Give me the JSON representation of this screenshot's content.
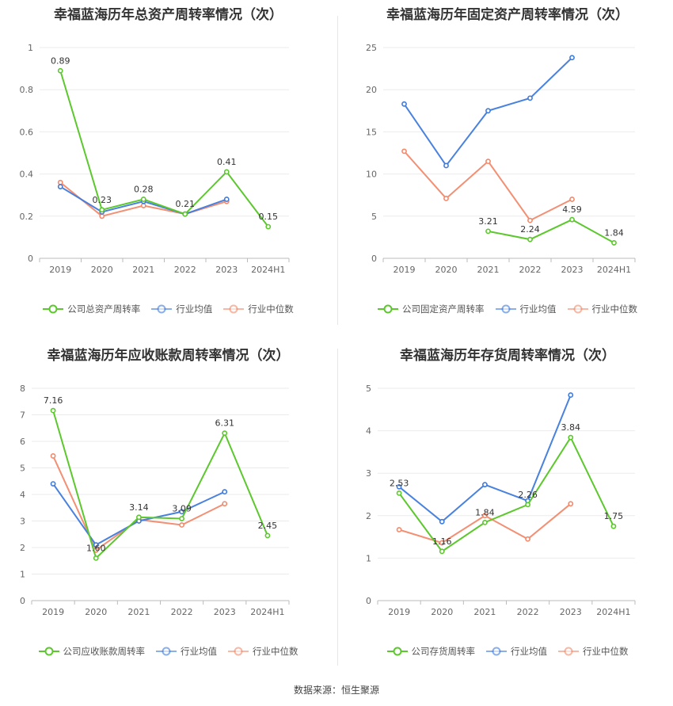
{
  "colors": {
    "company": "#5cc82d",
    "avg": "#3f7bdc",
    "median": "#f2896b"
  },
  "source_text": "数据来源：恒生聚源",
  "chart_data": [
    {
      "type": "line",
      "title": "幸福蓝海历年总资产周转率情况（次）",
      "categories": [
        "2019",
        "2020",
        "2021",
        "2022",
        "2023",
        "2024H1"
      ],
      "ylim": [
        0,
        1
      ],
      "yticks": [
        "0",
        "0.2",
        "0.4",
        "0.6",
        "0.8",
        "1"
      ],
      "ytick_values": [
        0,
        0.2,
        0.4,
        0.6,
        0.8,
        1
      ],
      "series": [
        {
          "name": "公司总资产周转率",
          "key": "company",
          "values": [
            0.89,
            0.23,
            0.28,
            0.21,
            0.41,
            0.15
          ],
          "labels": [
            "0.89",
            "0.23",
            "0.28",
            "0.21",
            "0.41",
            "0.15"
          ]
        },
        {
          "name": "行业均值",
          "key": "avg",
          "values": [
            0.34,
            0.22,
            0.27,
            0.21,
            0.28,
            null
          ]
        },
        {
          "name": "行业中位数",
          "key": "median",
          "values": [
            0.36,
            0.2,
            0.25,
            0.21,
            0.27,
            null
          ]
        }
      ]
    },
    {
      "type": "line",
      "title": "幸福蓝海历年固定资产周转率情况（次）",
      "categories": [
        "2019",
        "2020",
        "2021",
        "2022",
        "2023",
        "2024H1"
      ],
      "ylim": [
        0,
        25
      ],
      "yticks": [
        "0",
        "5",
        "10",
        "15",
        "20",
        "25"
      ],
      "ytick_values": [
        0,
        5,
        10,
        15,
        20,
        25
      ],
      "series": [
        {
          "name": "公司固定资产周转率",
          "key": "company",
          "values": [
            null,
            null,
            3.21,
            2.24,
            4.59,
            1.84
          ],
          "labels": [
            null,
            null,
            "3.21",
            "2.24",
            "4.59",
            "1.84"
          ]
        },
        {
          "name": "行业均值",
          "key": "avg",
          "values": [
            18.3,
            11.0,
            17.5,
            19.0,
            23.8,
            null
          ]
        },
        {
          "name": "行业中位数",
          "key": "median",
          "values": [
            12.7,
            7.1,
            11.5,
            4.5,
            7.0,
            null
          ]
        }
      ]
    },
    {
      "type": "line",
      "title": "幸福蓝海历年应收账款周转率情况（次）",
      "categories": [
        "2019",
        "2020",
        "2021",
        "2022",
        "2023",
        "2024H1"
      ],
      "ylim": [
        0,
        8
      ],
      "yticks": [
        "0",
        "1",
        "2",
        "3",
        "4",
        "5",
        "6",
        "7",
        "8"
      ],
      "ytick_values": [
        0,
        1,
        2,
        3,
        4,
        5,
        6,
        7,
        8
      ],
      "series": [
        {
          "name": "公司应收账款周转率",
          "key": "company",
          "values": [
            7.16,
            1.6,
            3.14,
            3.09,
            6.31,
            2.45
          ],
          "labels": [
            "7.16",
            "1.60",
            "3.14",
            "3.09",
            "6.31",
            "2.45"
          ]
        },
        {
          "name": "行业均值",
          "key": "avg",
          "values": [
            4.4,
            2.1,
            3.0,
            3.35,
            4.1,
            null
          ]
        },
        {
          "name": "行业中位数",
          "key": "median",
          "values": [
            5.45,
            1.9,
            3.05,
            2.85,
            3.65,
            null
          ]
        }
      ]
    },
    {
      "type": "line",
      "title": "幸福蓝海历年存货周转率情况（次）",
      "categories": [
        "2019",
        "2020",
        "2021",
        "2022",
        "2023",
        "2024H1"
      ],
      "ylim": [
        0,
        5
      ],
      "yticks": [
        "0",
        "1",
        "2",
        "3",
        "4",
        "5"
      ],
      "ytick_values": [
        0,
        1,
        2,
        3,
        4,
        5
      ],
      "series": [
        {
          "name": "公司存货周转率",
          "key": "company",
          "values": [
            2.53,
            1.16,
            1.84,
            2.26,
            3.84,
            1.75
          ],
          "labels": [
            "2.53",
            "1.16",
            "1.84",
            "2.26",
            "3.84",
            "1.75"
          ]
        },
        {
          "name": "行业均值",
          "key": "avg",
          "values": [
            2.68,
            1.86,
            2.73,
            2.35,
            4.84,
            null
          ]
        },
        {
          "name": "行业中位数",
          "key": "median",
          "values": [
            1.67,
            1.36,
            2.0,
            1.45,
            2.28,
            null
          ]
        }
      ]
    }
  ]
}
